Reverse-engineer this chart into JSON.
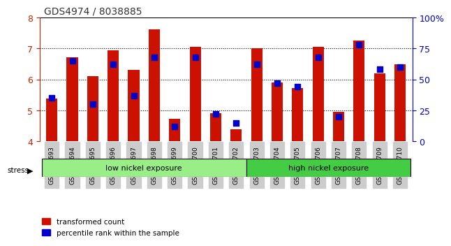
{
  "title": "GDS4974 / 8038885",
  "samples": [
    "GSM992693",
    "GSM992694",
    "GSM992695",
    "GSM992696",
    "GSM992697",
    "GSM992698",
    "GSM992699",
    "GSM992700",
    "GSM992701",
    "GSM992702",
    "GSM992703",
    "GSM992704",
    "GSM992705",
    "GSM992706",
    "GSM992707",
    "GSM992708",
    "GSM992709",
    "GSM992710"
  ],
  "red_values": [
    5.38,
    6.72,
    6.1,
    6.95,
    6.3,
    7.62,
    4.72,
    7.06,
    4.9,
    4.38,
    7.0,
    5.9,
    5.72,
    7.06,
    4.95,
    7.25,
    6.2,
    6.48
  ],
  "blue_percentiles": [
    35,
    65,
    30,
    62,
    37,
    68,
    12,
    68,
    22,
    15,
    62,
    47,
    44,
    68,
    20,
    78,
    58,
    60
  ],
  "ylim_left": [
    4,
    8
  ],
  "ylim_right": [
    0,
    100
  ],
  "yticks_left": [
    4,
    5,
    6,
    7,
    8
  ],
  "yticks_right": [
    0,
    25,
    50,
    75,
    100
  ],
  "yticklabels_right": [
    "0",
    "25",
    "50",
    "75",
    "100%"
  ],
  "bar_color": "#cc1100",
  "dot_color": "#0000cc",
  "group1_label": "low nickel exposure",
  "group2_label": "high nickel exposure",
  "group1_count": 10,
  "group2_count": 8,
  "group1_color": "#99ee88",
  "group2_color": "#44cc44",
  "stress_label": "stress",
  "legend1": "transformed count",
  "legend2": "percentile rank within the sample",
  "xlabel_color": "#cc2200",
  "ylabel_right_color": "#0000cc",
  "title_color": "#333333",
  "bar_width": 0.55,
  "dot_size": 38
}
